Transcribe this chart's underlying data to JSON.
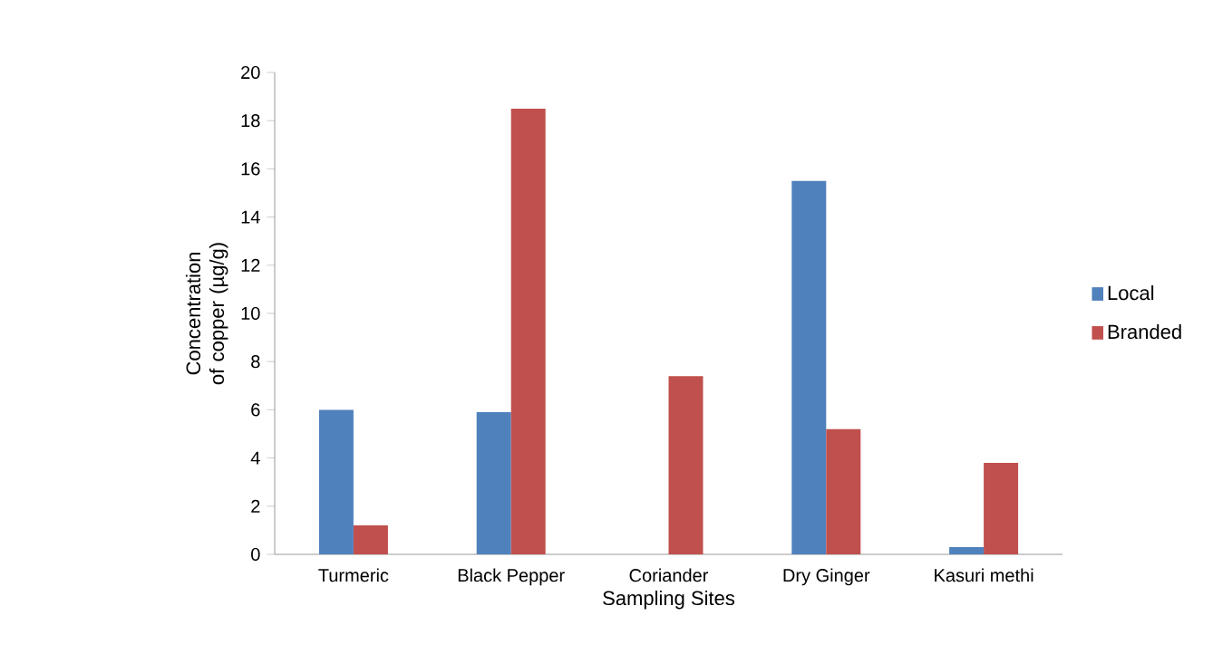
{
  "chart_data": {
    "type": "bar",
    "xlabel": "Sampling Sites",
    "ylabel": "Concentration of copper (µg/g)",
    "categories": [
      "Turmeric",
      "Black Pepper",
      "Coriander",
      "Dry Ginger",
      "Kasuri methi"
    ],
    "series": [
      {
        "name": "Local",
        "color": "#4f81bd",
        "values": [
          6.0,
          5.9,
          null,
          15.5,
          0.3
        ]
      },
      {
        "name": "Branded",
        "color": "#c0504d",
        "values": [
          1.2,
          18.5,
          7.4,
          5.2,
          3.8
        ]
      }
    ],
    "ylim": [
      0,
      20
    ],
    "yticks": [
      0,
      2,
      4,
      6,
      8,
      10,
      12,
      14,
      16,
      18,
      20
    ],
    "grid": false,
    "legend": "right"
  }
}
